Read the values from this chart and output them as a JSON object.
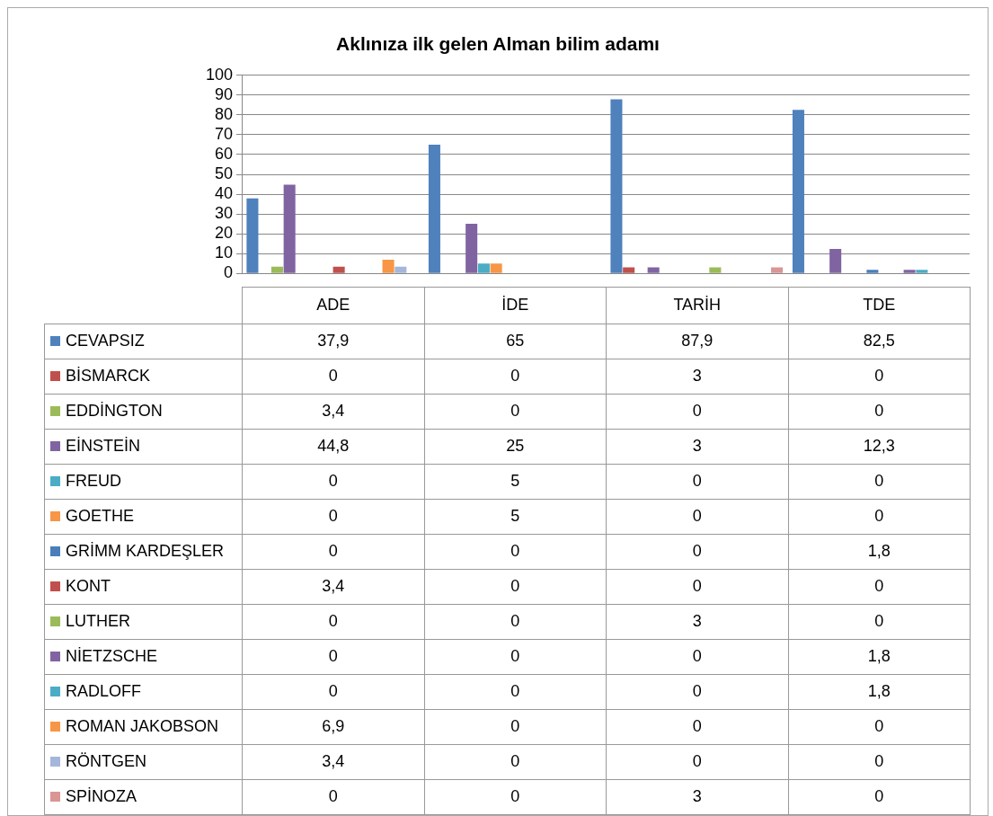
{
  "chart_data": {
    "type": "bar",
    "title": "Aklınıza ilk gelen Alman bilim adamı",
    "categories": [
      "ADE",
      "İDE",
      "TARİH",
      "TDE"
    ],
    "ylim": [
      0,
      100
    ],
    "yticks": [
      0,
      10,
      20,
      30,
      40,
      50,
      60,
      70,
      80,
      90,
      100
    ],
    "grid": "y",
    "legend": "bottom",
    "series": [
      {
        "name": "CEVAPSIZ",
        "color": "#4f81bd",
        "values": [
          37.9,
          65,
          87.9,
          82.5
        ],
        "value_labels": [
          "37,9",
          "65",
          "87,9",
          "82,5"
        ]
      },
      {
        "name": "BİSMARCK",
        "color": "#c0504d",
        "values": [
          0,
          0,
          3,
          0
        ],
        "value_labels": [
          "0",
          "0",
          "3",
          "0"
        ]
      },
      {
        "name": "EDDİNGTON",
        "color": "#9bbb59",
        "values": [
          3.4,
          0,
          0,
          0
        ],
        "value_labels": [
          "3,4",
          "0",
          "0",
          "0"
        ]
      },
      {
        "name": "EİNSTEİN",
        "color": "#8064a2",
        "values": [
          44.8,
          25,
          3,
          12.3
        ],
        "value_labels": [
          "44,8",
          "25",
          "3",
          "12,3"
        ]
      },
      {
        "name": "FREUD",
        "color": "#4bacc6",
        "values": [
          0,
          5,
          0,
          0
        ],
        "value_labels": [
          "0",
          "5",
          "0",
          "0"
        ]
      },
      {
        "name": "GOETHE",
        "color": "#f79646",
        "values": [
          0,
          5,
          0,
          0
        ],
        "value_labels": [
          "0",
          "5",
          "0",
          "0"
        ]
      },
      {
        "name": "GRİMM KARDEŞLER",
        "color": "#4a7ebb",
        "values": [
          0,
          0,
          0,
          1.8
        ],
        "value_labels": [
          "0",
          "0",
          "0",
          "1,8"
        ]
      },
      {
        "name": "KONT",
        "color": "#c0504d",
        "values": [
          3.4,
          0,
          0,
          0
        ],
        "value_labels": [
          "3,4",
          "0",
          "0",
          "0"
        ]
      },
      {
        "name": "LUTHER",
        "color": "#9bbb59",
        "values": [
          0,
          0,
          3,
          0
        ],
        "value_labels": [
          "0",
          "0",
          "3",
          "0"
        ]
      },
      {
        "name": "NİETZSCHE",
        "color": "#8064a2",
        "values": [
          0,
          0,
          0,
          1.8
        ],
        "value_labels": [
          "0",
          "0",
          "0",
          "1,8"
        ]
      },
      {
        "name": "RADLOFF",
        "color": "#4bacc6",
        "values": [
          0,
          0,
          0,
          1.8
        ],
        "value_labels": [
          "0",
          "0",
          "0",
          "1,8"
        ]
      },
      {
        "name": "ROMAN JAKOBSON",
        "color": "#f79646",
        "values": [
          6.9,
          0,
          0,
          0
        ],
        "value_labels": [
          "6,9",
          "0",
          "0",
          "0"
        ]
      },
      {
        "name": "RÖNTGEN",
        "color": "#a5b6db",
        "values": [
          3.4,
          0,
          0,
          0
        ],
        "value_labels": [
          "3,4",
          "0",
          "0",
          "0"
        ]
      },
      {
        "name": "SPİNOZA",
        "color": "#d99694",
        "values": [
          0,
          0,
          3,
          0
        ],
        "value_labels": [
          "0",
          "0",
          "3",
          "0"
        ]
      }
    ]
  }
}
